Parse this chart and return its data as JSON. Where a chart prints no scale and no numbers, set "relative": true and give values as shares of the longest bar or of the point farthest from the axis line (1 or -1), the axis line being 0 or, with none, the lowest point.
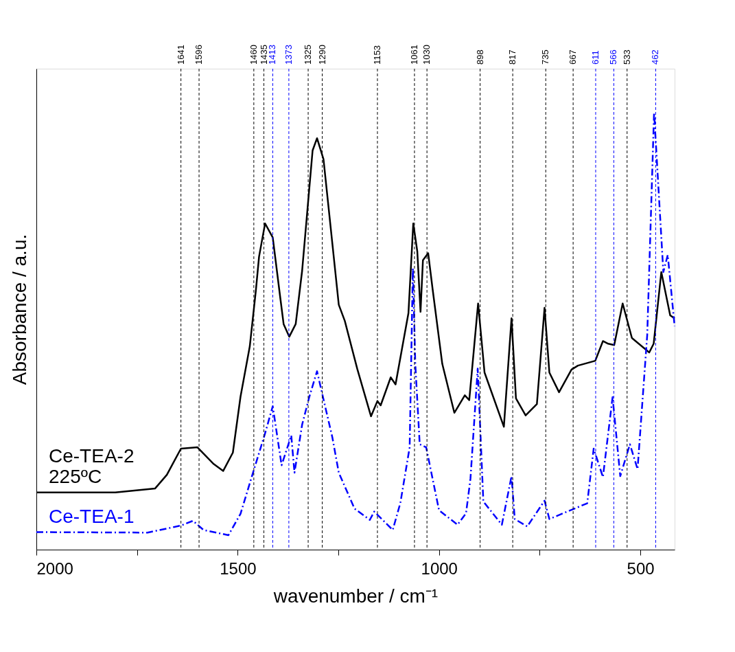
{
  "chart_data": {
    "type": "line",
    "relative": true,
    "xlabel": "wavenumber / cm⁻¹",
    "ylabel": "Absorbance / a.u.",
    "xlim": [
      2000,
      415
    ],
    "xticks": [
      2000,
      {
        "value": 1750,
        "label": null
      },
      1500,
      {
        "value": 1250,
        "label": null
      },
      1000,
      {
        "value": 750,
        "label": null
      },
      500
    ],
    "grid": false,
    "marker": "none",
    "tick_labels": "x",
    "series": [
      {
        "name": "Ce-TEA-2 225ºC",
        "color": "#000000",
        "line_style": "solid",
        "x": [
          2000,
          1804,
          1705,
          1676,
          1641,
          1600,
          1561,
          1536,
          1512,
          1493,
          1470,
          1455,
          1447,
          1432,
          1413,
          1394,
          1386,
          1372,
          1356,
          1340,
          1325,
          1314,
          1303,
          1287,
          1276,
          1249,
          1234,
          1203,
          1169,
          1153,
          1145,
          1120,
          1108,
          1076,
          1064,
          1054,
          1046,
          1040,
          1027,
          1016,
          992,
          962,
          936,
          925,
          903,
          887,
          839,
          820,
          809,
          785,
          757,
          738,
          726,
          702,
          671,
          655,
          612,
          593,
          580,
          565,
          544,
          521,
          478,
          467,
          448,
          426,
          415
        ],
        "values": [
          0.131,
          0.131,
          0.14,
          0.171,
          0.231,
          0.234,
          0.197,
          0.18,
          0.222,
          0.35,
          0.465,
          0.592,
          0.67,
          0.746,
          0.714,
          0.574,
          0.516,
          0.487,
          0.516,
          0.638,
          0.797,
          0.913,
          0.941,
          0.893,
          0.797,
          0.56,
          0.523,
          0.413,
          0.305,
          0.34,
          0.33,
          0.394,
          0.378,
          0.541,
          0.746,
          0.682,
          0.544,
          0.662,
          0.678,
          0.596,
          0.425,
          0.313,
          0.353,
          0.342,
          0.563,
          0.405,
          0.281,
          0.529,
          0.346,
          0.307,
          0.333,
          0.553,
          0.405,
          0.36,
          0.412,
          0.421,
          0.432,
          0.477,
          0.471,
          0.468,
          0.563,
          0.484,
          0.451,
          0.471,
          0.635,
          0.536,
          0.529
        ]
      },
      {
        "name": "Ce-TEA-1",
        "color": "#0000ff",
        "line_style": "dashed",
        "x": [
          2000,
          1724,
          1641,
          1611,
          1585,
          1523,
          1493,
          1462,
          1432,
          1413,
          1391,
          1367,
          1359,
          1340,
          1322,
          1303,
          1287,
          1265,
          1249,
          1210,
          1172,
          1161,
          1115,
          1096,
          1073,
          1065,
          1059,
          1048,
          1032,
          1000,
          954,
          933,
          922,
          904,
          890,
          844,
          820,
          812,
          781,
          738,
          726,
          632,
          616,
          593,
          569,
          550,
          526,
          507,
          483,
          466,
          443,
          432,
          415
        ],
        "values": [
          0.04,
          0.039,
          0.055,
          0.066,
          0.045,
          0.033,
          0.082,
          0.176,
          0.266,
          0.328,
          0.193,
          0.261,
          0.176,
          0.286,
          0.35,
          0.408,
          0.344,
          0.257,
          0.176,
          0.094,
          0.068,
          0.087,
          0.045,
          0.107,
          0.234,
          0.644,
          0.425,
          0.241,
          0.234,
          0.09,
          0.057,
          0.083,
          0.162,
          0.414,
          0.11,
          0.057,
          0.168,
          0.07,
          0.053,
          0.112,
          0.07,
          0.106,
          0.231,
          0.166,
          0.349,
          0.168,
          0.241,
          0.184,
          0.491,
          1.0,
          0.635,
          0.674,
          0.511
        ]
      }
    ],
    "ref_lines": [
      {
        "axis": "x",
        "value": 1641,
        "label": "1641",
        "color": "#000000",
        "line_style": "dashed"
      },
      {
        "axis": "x",
        "value": 1596,
        "label": "1596",
        "color": "#000000",
        "line_style": "dashed"
      },
      {
        "axis": "x",
        "value": 1460,
        "label": "1460",
        "color": "#000000",
        "line_style": "dashed"
      },
      {
        "axis": "x",
        "value": 1435,
        "label": "1435",
        "color": "#000000",
        "line_style": "dashed"
      },
      {
        "axis": "x",
        "value": 1413,
        "label": "1413",
        "color": "#0000ff",
        "line_style": "dashed"
      },
      {
        "axis": "x",
        "value": 1373,
        "label": "1373",
        "color": "#0000ff",
        "line_style": "dashed"
      },
      {
        "axis": "x",
        "value": 1325,
        "label": "1325",
        "color": "#000000",
        "line_style": "dashed"
      },
      {
        "axis": "x",
        "value": 1290,
        "label": "1290",
        "color": "#000000",
        "line_style": "dashed"
      },
      {
        "axis": "x",
        "value": 1153,
        "label": "1153",
        "color": "#000000",
        "line_style": "dashed"
      },
      {
        "axis": "x",
        "value": 1061,
        "label": "1061",
        "color": "#000000",
        "line_style": "dashed"
      },
      {
        "axis": "x",
        "value": 1030,
        "label": "1030",
        "color": "#000000",
        "line_style": "dashed"
      },
      {
        "axis": "x",
        "value": 898,
        "label": "898",
        "color": "#000000",
        "line_style": "dashed"
      },
      {
        "axis": "x",
        "value": 817,
        "label": "817",
        "color": "#000000",
        "line_style": "dashed"
      },
      {
        "axis": "x",
        "value": 735,
        "label": "735",
        "color": "#000000",
        "line_style": "dashed"
      },
      {
        "axis": "x",
        "value": 667,
        "label": "667",
        "color": "#000000",
        "line_style": "dashed"
      },
      {
        "axis": "x",
        "value": 611,
        "label": "611",
        "color": "#0000ff",
        "line_style": "dashed"
      },
      {
        "axis": "x",
        "value": 566,
        "label": "566",
        "color": "#0000ff",
        "line_style": "dashed"
      },
      {
        "axis": "x",
        "value": 533,
        "label": "533",
        "color": "#000000",
        "line_style": "dashed"
      },
      {
        "axis": "x",
        "value": 462,
        "label": "462",
        "color": "#0000ff",
        "line_style": "dashed"
      }
    ]
  }
}
